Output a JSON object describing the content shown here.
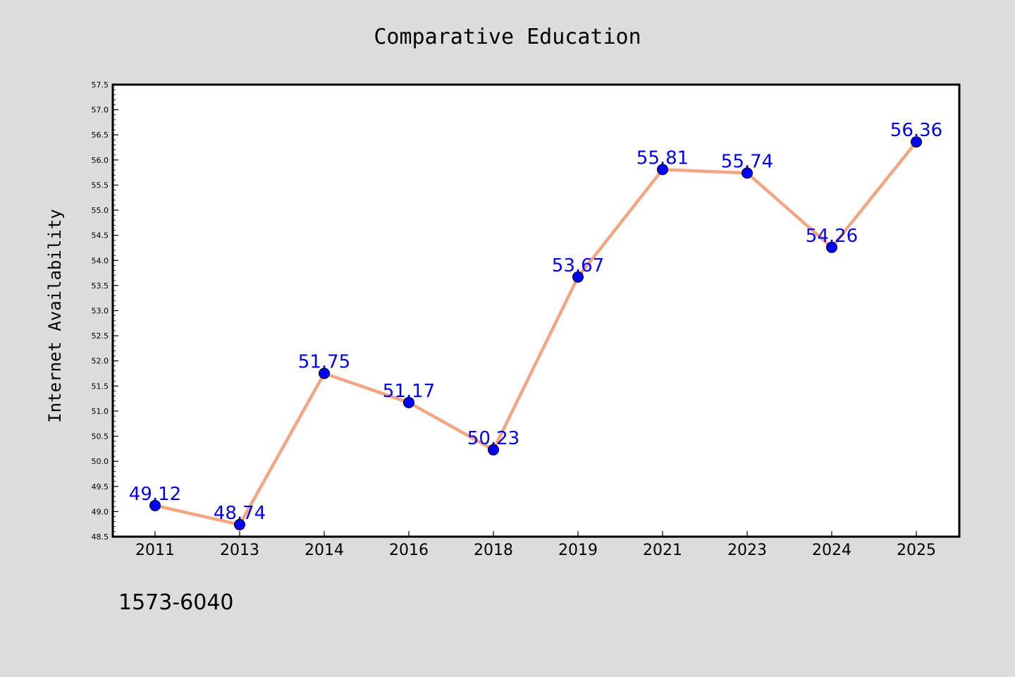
{
  "chart_data": {
    "type": "line",
    "title": "Comparative Education",
    "xlabel": "",
    "ylabel": "Internet Availability",
    "categories": [
      "2011",
      "2013",
      "2014",
      "2016",
      "2018",
      "2019",
      "2021",
      "2023",
      "2024",
      "2025"
    ],
    "series": [
      {
        "values": [
          49.12,
          48.74,
          51.75,
          51.17,
          50.23,
          53.67,
          55.81,
          55.74,
          54.26,
          56.36
        ],
        "line_color": "#f4a582",
        "marker_color": "#0000ff"
      }
    ],
    "data_labels": [
      "49.12",
      "48.74",
      "51.75",
      "51.17",
      "50.23",
      "53.67",
      "55.81",
      "55.74",
      "54.26",
      "56.36"
    ],
    "data_label_color": "#0000ff",
    "ylim": [
      48.5,
      57.5
    ],
    "yticks": [
      48.5,
      49.0,
      49.5,
      50.0,
      50.5,
      51.0,
      51.5,
      52.0,
      52.5,
      53.0,
      53.5,
      54.0,
      54.5,
      55.0,
      55.5,
      56.0,
      56.5,
      57.0,
      57.5
    ],
    "grid": false,
    "legend": "none",
    "footer_text": "1573-6040",
    "background_color": "#dcdcdc",
    "plot_background_color": "#ffffff"
  }
}
